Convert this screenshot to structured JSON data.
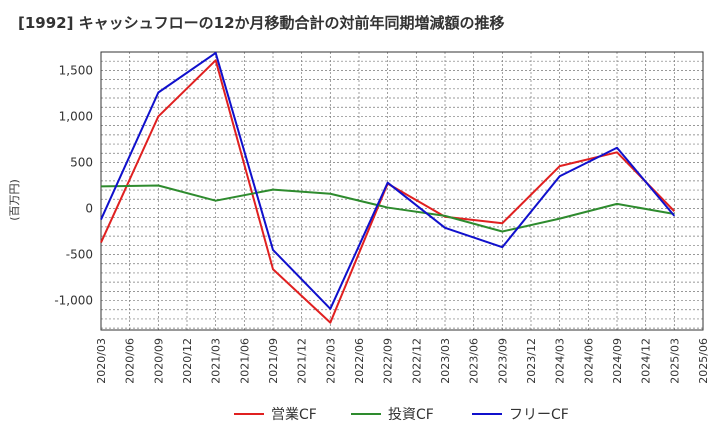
{
  "chart_data": {
    "type": "line",
    "title": "[1992]  キャッシュフローの12か月移動合計の対前年同期増減額の推移",
    "ylabel": "(百万円)",
    "xlabel": "",
    "ylim": [
      -1320,
      1700
    ],
    "yticks": [
      -1000,
      -500,
      0,
      500,
      1000,
      1500
    ],
    "ytick_labels": [
      "-1,000",
      "-500",
      "0",
      "500",
      "1,000",
      "1,500"
    ],
    "x": [
      "2020/03",
      "2020/06",
      "2020/09",
      "2020/12",
      "2021/03",
      "2021/06",
      "2021/09",
      "2021/12",
      "2022/03",
      "2022/06",
      "2022/09",
      "2022/12",
      "2023/03",
      "2023/06",
      "2023/09",
      "2023/12",
      "2024/03",
      "2024/06",
      "2024/09",
      "2024/12",
      "2025/03",
      "2025/06"
    ],
    "grid": true,
    "legend_position": "bottom",
    "series": [
      {
        "name": "営業CF",
        "color": "#e02020",
        "points": [
          [
            "2020/03",
            -370
          ],
          [
            "2020/09",
            1000
          ],
          [
            "2021/03",
            1610
          ],
          [
            "2021/09",
            -660
          ],
          [
            "2022/03",
            -1240
          ],
          [
            "2022/09",
            270
          ],
          [
            "2023/03",
            -90
          ],
          [
            "2023/09",
            -160
          ],
          [
            "2024/03",
            460
          ],
          [
            "2024/09",
            610
          ],
          [
            "2025/03",
            -30
          ]
        ]
      },
      {
        "name": "投資CF",
        "color": "#2e8b2e",
        "points": [
          [
            "2020/03",
            240
          ],
          [
            "2020/09",
            250
          ],
          [
            "2021/03",
            85
          ],
          [
            "2021/09",
            205
          ],
          [
            "2022/03",
            160
          ],
          [
            "2022/09",
            10
          ],
          [
            "2023/03",
            -80
          ],
          [
            "2023/09",
            -250
          ],
          [
            "2024/03",
            -110
          ],
          [
            "2024/09",
            50
          ],
          [
            "2025/03",
            -60
          ]
        ]
      },
      {
        "name": "フリーCF",
        "color": "#1010cc",
        "points": [
          [
            "2020/03",
            -120
          ],
          [
            "2020/09",
            1260
          ],
          [
            "2021/03",
            1690
          ],
          [
            "2021/09",
            -450
          ],
          [
            "2022/03",
            -1090
          ],
          [
            "2022/09",
            280
          ],
          [
            "2023/03",
            -210
          ],
          [
            "2023/09",
            -420
          ],
          [
            "2024/03",
            350
          ],
          [
            "2024/09",
            660
          ],
          [
            "2025/03",
            -80
          ]
        ]
      }
    ]
  }
}
